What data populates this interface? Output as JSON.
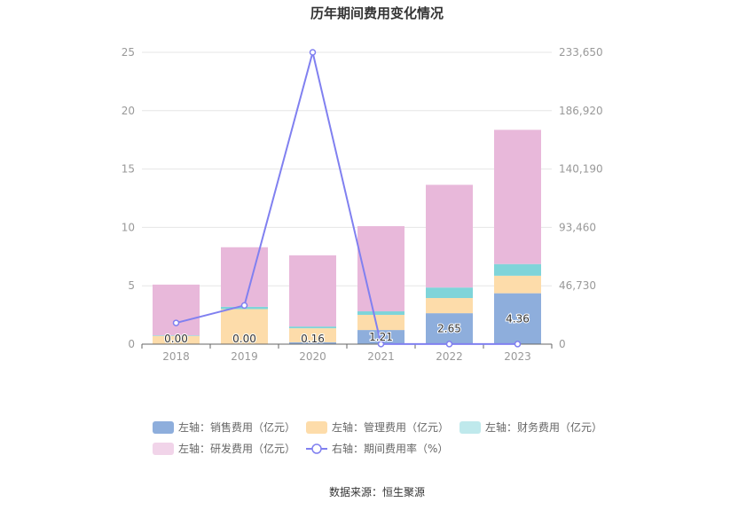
{
  "chart_data": {
    "type": "bar",
    "title": "历年期间费用变化情况",
    "categories": [
      "2018",
      "2019",
      "2020",
      "2021",
      "2022",
      "2023"
    ],
    "stacked": true,
    "y_left": {
      "ticks": [
        "0",
        "5",
        "10",
        "15",
        "20",
        "25"
      ],
      "ylim": [
        0,
        25
      ]
    },
    "y_right": {
      "ticks": [
        "0",
        "46,730",
        "93,460",
        "140,190",
        "186,920",
        "233,650"
      ],
      "ylim": [
        0,
        233650
      ]
    },
    "series": [
      {
        "name": "左轴：销售费用（亿元）",
        "type": "bar",
        "axis": "left",
        "color": "#8eaedc",
        "values": [
          0.0,
          0.0,
          0.16,
          1.21,
          2.65,
          4.36
        ],
        "labels": [
          "0.00",
          "0.00",
          "0.16",
          "1.21",
          "2.65",
          "4.36"
        ]
      },
      {
        "name": "左轴：管理费用（亿元）",
        "type": "bar",
        "axis": "left",
        "color": "#fddcaa",
        "values": [
          0.7,
          3.0,
          1.2,
          1.3,
          1.3,
          1.5
        ]
      },
      {
        "name": "左轴：财务费用（亿元）",
        "type": "bar",
        "axis": "left",
        "color": "#7fd4d9",
        "values": [
          0.05,
          0.2,
          0.15,
          0.3,
          0.9,
          1.0
        ]
      },
      {
        "name": "左轴：研发费用（亿元）",
        "type": "bar",
        "axis": "left",
        "color": "#e8b8da",
        "values": [
          4.35,
          5.1,
          6.1,
          7.3,
          8.8,
          11.5
        ]
      },
      {
        "name": "右轴：期间费用率（%）",
        "type": "line",
        "axis": "right",
        "color": "#8080f0",
        "values": [
          17000,
          31000,
          233650,
          80,
          60,
          50
        ]
      }
    ],
    "legend_position": "bottom",
    "grid": true
  },
  "legend_icons": {
    "bar": "rounded-rect",
    "line": "circle-line"
  },
  "source_text": "数据来源：恒生聚源"
}
